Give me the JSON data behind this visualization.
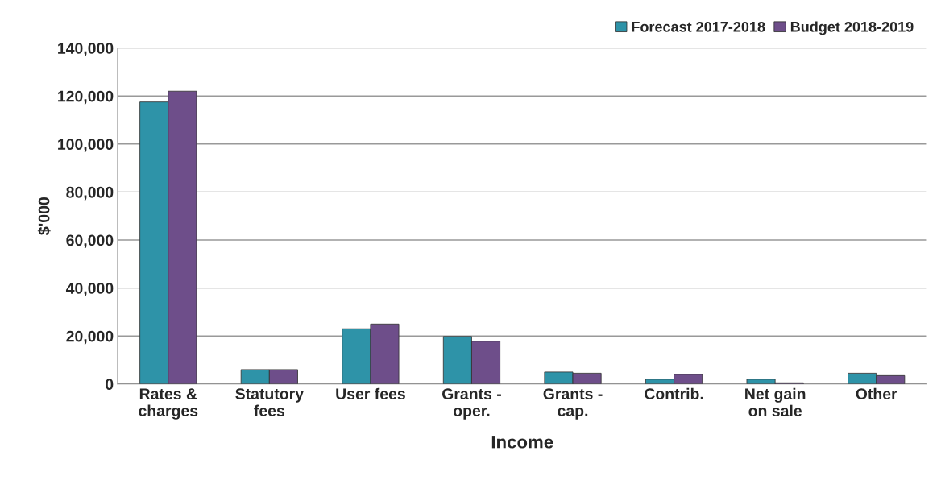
{
  "chart_data": {
    "type": "bar",
    "xlabel": "Income",
    "ylabel": "$'000",
    "categories": [
      "Rates &\ncharges",
      "Statutory\nfees",
      "User fees",
      "Grants -\noper.",
      "Grants -\ncap.",
      "Contrib.",
      "Net gain\non sale",
      "Other"
    ],
    "series": [
      {
        "name": "Forecast 2017-2018",
        "color": "#2e93a8",
        "values": [
          117500,
          6000,
          23000,
          19800,
          5000,
          2000,
          2000,
          4500
        ]
      },
      {
        "name": "Budget 2018-2019",
        "color": "#6e4e8a",
        "values": [
          122000,
          6000,
          25000,
          17800,
          4500,
          4000,
          500,
          3500
        ]
      }
    ],
    "ylim": [
      0,
      140000
    ],
    "yticks": [
      {
        "value": 0,
        "label": "0"
      },
      {
        "value": 20000,
        "label": "20,000"
      },
      {
        "value": 40000,
        "label": "40,000"
      },
      {
        "value": 60000,
        "label": "60,000"
      },
      {
        "value": 80000,
        "label": "80,000"
      },
      {
        "value": 100000,
        "label": "100,000"
      },
      {
        "value": 120000,
        "label": "120,000"
      },
      {
        "value": 140000,
        "label": "140,000"
      }
    ],
    "grid": "y",
    "legend": "top right"
  }
}
